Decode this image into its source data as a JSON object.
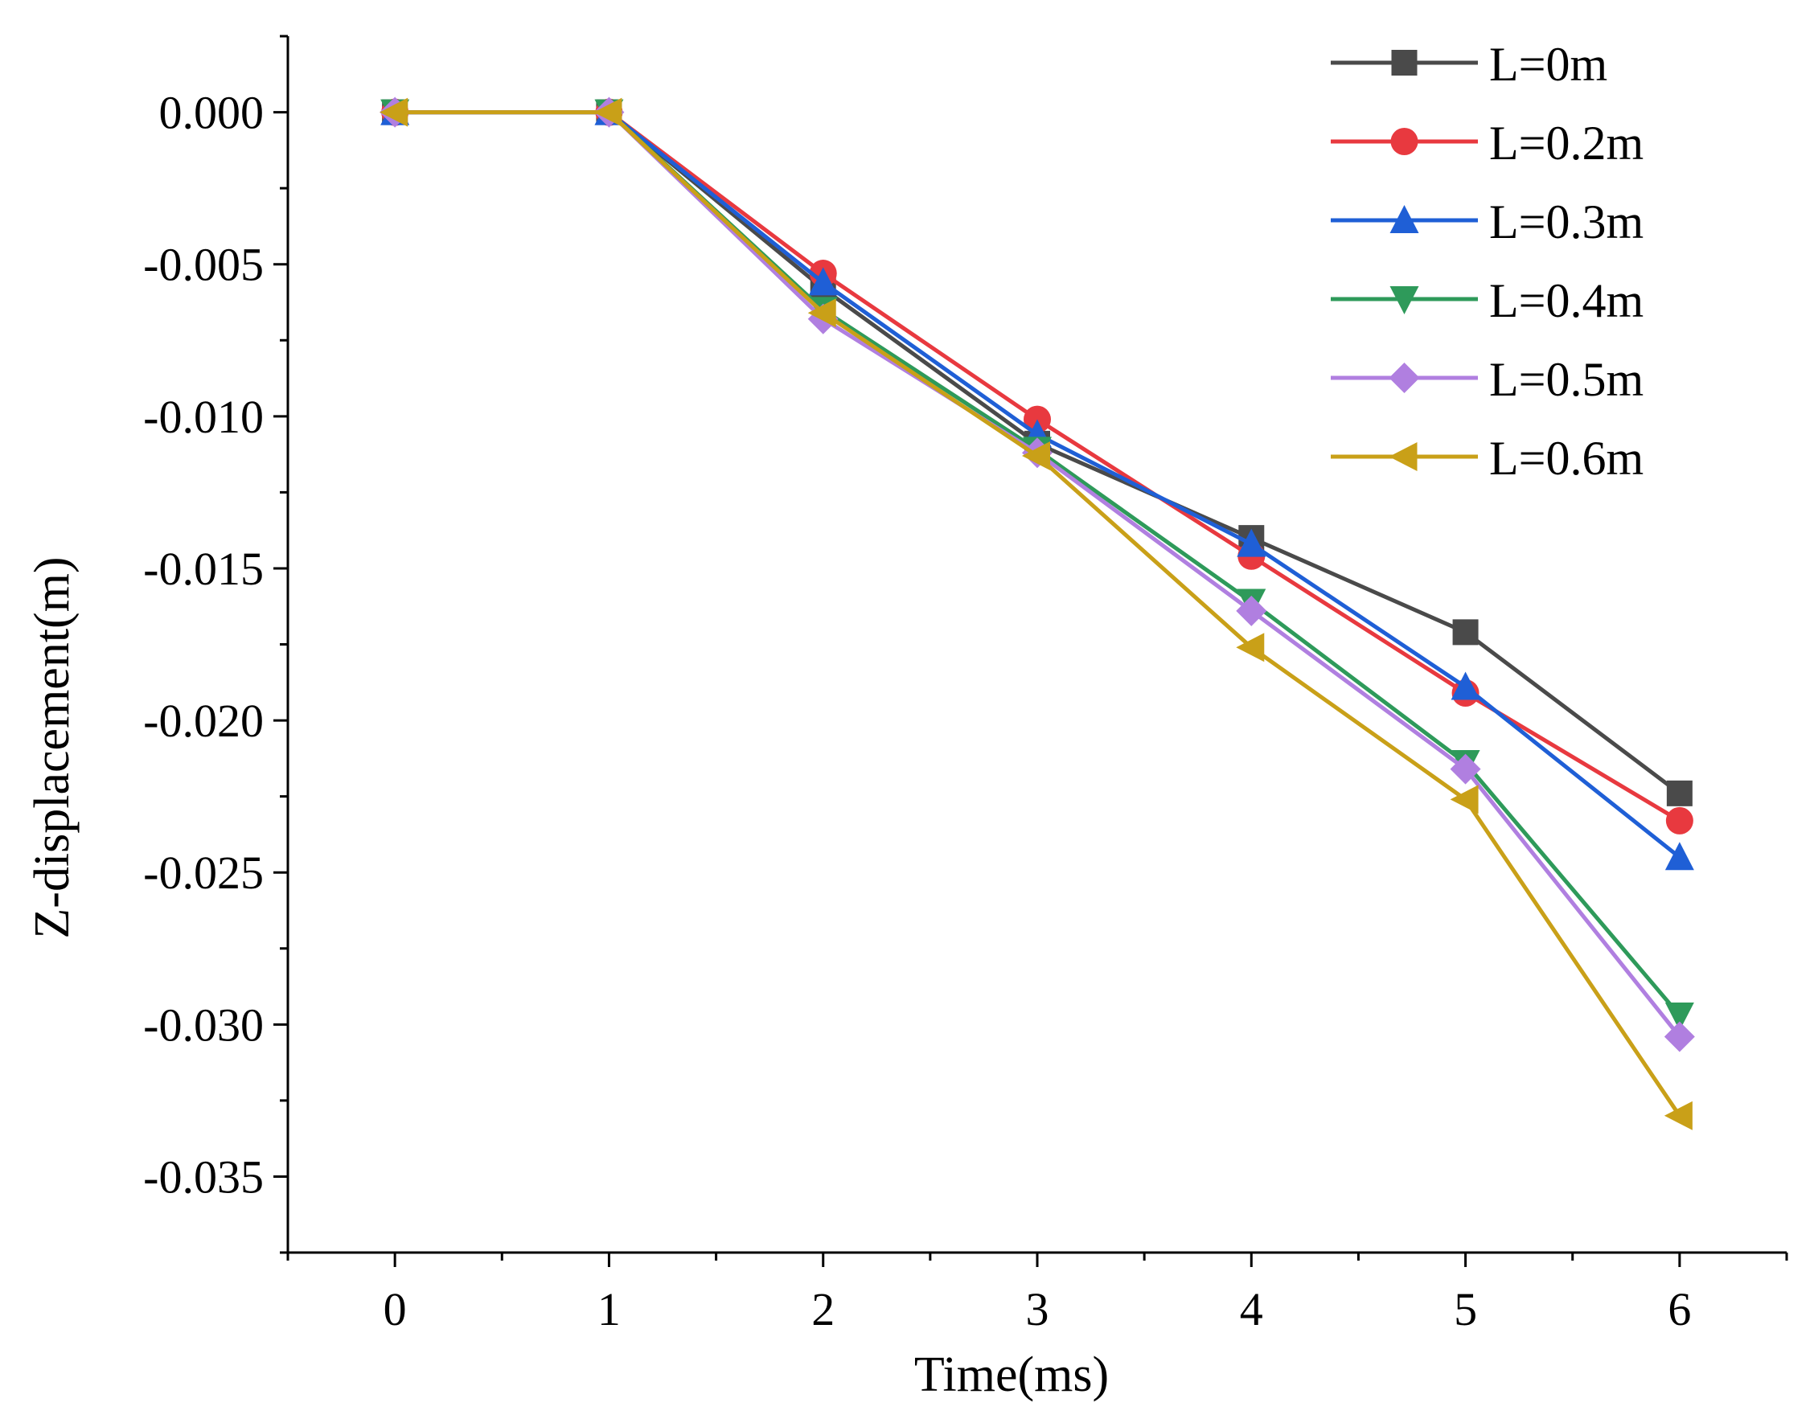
{
  "chart_data": {
    "type": "line",
    "title": "",
    "xlabel": "Time(ms)",
    "ylabel": "Z-displacement(m)",
    "x": [
      0,
      1,
      2,
      3,
      4,
      5,
      6
    ],
    "xlim": [
      -0.5,
      6.5
    ],
    "ylim": [
      -0.0375,
      0.0025
    ],
    "xticks": [
      0,
      1,
      2,
      3,
      4,
      5,
      6
    ],
    "xtick_labels": [
      "0",
      "1",
      "2",
      "3",
      "4",
      "5",
      "6"
    ],
    "yticks": [
      0.0,
      -0.005,
      -0.01,
      -0.015,
      -0.02,
      -0.025,
      -0.03,
      -0.035
    ],
    "ytick_labels": [
      "0.000",
      "-0.005",
      "-0.010",
      "-0.015",
      "-0.020",
      "-0.025",
      "-0.030",
      "-0.035"
    ],
    "grid": false,
    "legend_position": "top-right",
    "series": [
      {
        "name": "L=0m",
        "color": "#4a4a4a",
        "marker": "square",
        "values": [
          0.0,
          0.0,
          -0.0058,
          -0.0109,
          -0.014,
          -0.0171,
          -0.0224
        ]
      },
      {
        "name": "L=0.2m",
        "color": "#e8393f",
        "marker": "circle",
        "values": [
          0.0,
          0.0,
          -0.0053,
          -0.0101,
          -0.0146,
          -0.0191,
          -0.0233
        ]
      },
      {
        "name": "L=0.3m",
        "color": "#1f5fd6",
        "marker": "triangle-up",
        "values": [
          0.0,
          0.0,
          -0.0056,
          -0.0106,
          -0.0142,
          -0.0189,
          -0.0245
        ]
      },
      {
        "name": "L=0.4m",
        "color": "#2e9a5a",
        "marker": "triangle-down",
        "values": [
          0.0,
          0.0,
          -0.0065,
          -0.0111,
          -0.0161,
          -0.0214,
          -0.0297
        ]
      },
      {
        "name": "L=0.5m",
        "color": "#b07fe0",
        "marker": "diamond",
        "values": [
          0.0,
          0.0,
          -0.0068,
          -0.0112,
          -0.0164,
          -0.0216,
          -0.0304
        ]
      },
      {
        "name": "L=0.6m",
        "color": "#c9a018",
        "marker": "triangle-left",
        "values": [
          0.0,
          0.0,
          -0.0066,
          -0.0113,
          -0.0176,
          -0.0226,
          -0.033
        ]
      }
    ]
  }
}
